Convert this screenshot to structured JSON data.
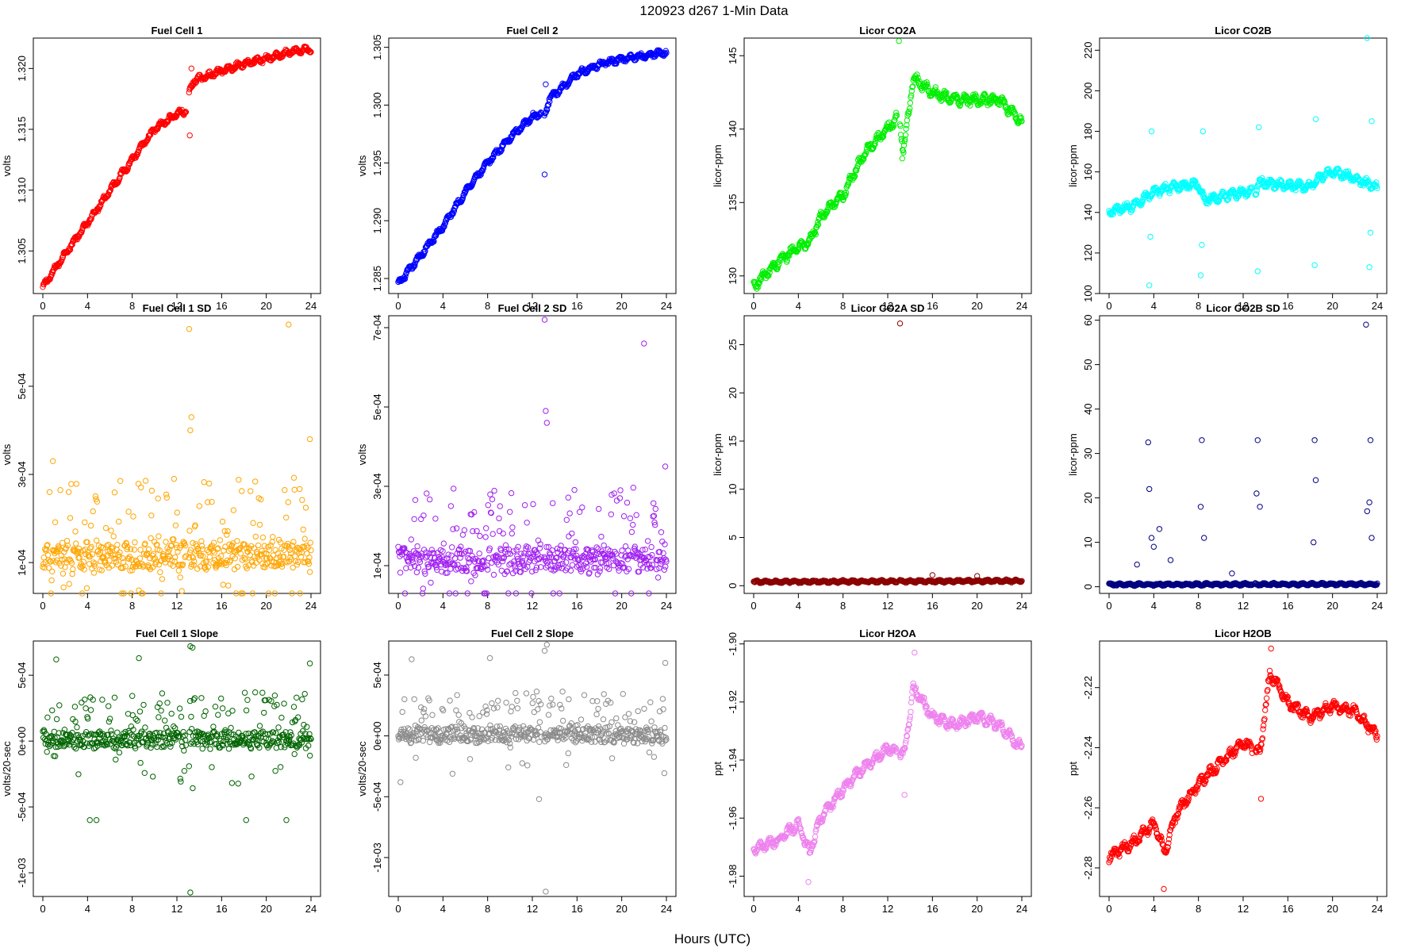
{
  "figure": {
    "title": "120923    d267    1-Min Data",
    "xlabel": "Hours (UTC)"
  },
  "chart_data": [
    {
      "type": "scatter",
      "title": "Fuel Cell 1",
      "ylabel": "volts",
      "color": "#ff0000",
      "xlim": [
        0,
        24
      ],
      "xticks": [
        0,
        4,
        8,
        12,
        16,
        20,
        24
      ],
      "ylim": [
        1.3015,
        1.3225
      ],
      "yticks": [
        1.305,
        1.31,
        1.315,
        1.32
      ],
      "ytick_labels": [
        "1.305",
        "1.310",
        "1.315",
        "1.320"
      ],
      "series_model": {
        "points": [
          [
            0,
            1.302
          ],
          [
            2,
            1.3048
          ],
          [
            4,
            1.3073
          ],
          [
            6,
            1.31
          ],
          [
            8,
            1.3125
          ],
          [
            10,
            1.315
          ],
          [
            12,
            1.3163
          ],
          [
            12.9,
            1.3165
          ],
          [
            13.1,
            1.318
          ],
          [
            13.5,
            1.319
          ],
          [
            16,
            1.3198
          ],
          [
            18,
            1.3204
          ],
          [
            20,
            1.3208
          ],
          [
            22,
            1.3213
          ],
          [
            24,
            1.3216
          ]
        ],
        "noise": 0.0003,
        "spread": 0,
        "outliers": [
          [
            13.15,
            1.3145
          ],
          [
            13.3,
            1.32
          ]
        ]
      }
    },
    {
      "type": "scatter",
      "title": "Fuel Cell 2",
      "ylabel": "volts",
      "color": "#0000ff",
      "xlim": [
        0,
        24
      ],
      "xticks": [
        0,
        4,
        8,
        12,
        16,
        20,
        24
      ],
      "ylim": [
        1.2837,
        1.3058
      ],
      "yticks": [
        1.285,
        1.29,
        1.295,
        1.3,
        1.305
      ],
      "ytick_labels": [
        "1.285",
        "1.290",
        "1.295",
        "1.300",
        "1.305"
      ],
      "series_model": {
        "points": [
          [
            0,
            1.2845
          ],
          [
            2,
            1.287
          ],
          [
            4,
            1.2895
          ],
          [
            6,
            1.2925
          ],
          [
            8,
            1.295
          ],
          [
            10,
            1.2972
          ],
          [
            12,
            1.299
          ],
          [
            12.9,
            1.2993
          ],
          [
            13.1,
            1.299
          ],
          [
            13.5,
            1.3005
          ],
          [
            16,
            1.3027
          ],
          [
            18,
            1.3035
          ],
          [
            20,
            1.304
          ],
          [
            22,
            1.3043
          ],
          [
            24,
            1.3046
          ]
        ],
        "noise": 0.0003,
        "spread": 0,
        "outliers": [
          [
            13.1,
            1.294
          ],
          [
            13.2,
            1.3018
          ]
        ]
      }
    },
    {
      "type": "scatter",
      "title": "Licor CO2A",
      "ylabel": "licor-ppm",
      "color": "#00ee00",
      "xlim": [
        0,
        24
      ],
      "xticks": [
        0,
        4,
        8,
        12,
        16,
        20,
        24
      ],
      "ylim": [
        128.8,
        146.2
      ],
      "yticks": [
        130,
        135,
        140,
        145
      ],
      "ytick_labels": [
        "130",
        "135",
        "140",
        "145"
      ],
      "series_model": {
        "points": [
          [
            0,
            129.3
          ],
          [
            2,
            130.8
          ],
          [
            4,
            132.0
          ],
          [
            5,
            132.3
          ],
          [
            6,
            134.0
          ],
          [
            8,
            135.5
          ],
          [
            10,
            138.5
          ],
          [
            12,
            140.0
          ],
          [
            13,
            141.0
          ],
          [
            13.4,
            138.5
          ],
          [
            14.3,
            143.5
          ],
          [
            16,
            142.5
          ],
          [
            18,
            142.0
          ],
          [
            20,
            142.0
          ],
          [
            22,
            142.0
          ],
          [
            24,
            140.5
          ]
        ],
        "noise": 0.4,
        "spread": 0,
        "outliers": [
          [
            13.0,
            146.0
          ],
          [
            13.3,
            138.0
          ]
        ]
      }
    },
    {
      "type": "scatter",
      "title": "Licor CO2B",
      "ylabel": "licor-ppm",
      "color": "#00ffff",
      "xlim": [
        0,
        24
      ],
      "xticks": [
        0,
        4,
        8,
        12,
        16,
        20,
        24
      ],
      "ylim": [
        100,
        226
      ],
      "yticks": [
        100,
        120,
        140,
        160,
        180,
        200,
        220
      ],
      "ytick_labels": [
        "100",
        "120",
        "140",
        "160",
        "180",
        "200",
        "220"
      ],
      "series_model": {
        "points": [
          [
            0,
            140
          ],
          [
            2,
            143
          ],
          [
            4,
            150
          ],
          [
            6,
            153
          ],
          [
            8,
            154
          ],
          [
            8.5,
            146
          ],
          [
            10,
            148
          ],
          [
            12,
            150
          ],
          [
            13,
            150
          ],
          [
            13.5,
            155
          ],
          [
            16,
            153
          ],
          [
            18,
            153
          ],
          [
            19,
            158
          ],
          [
            20,
            160
          ],
          [
            22,
            157
          ],
          [
            24,
            152
          ]
        ],
        "noise": 2.5,
        "spread": 0,
        "outliers": [
          [
            3.6,
            104
          ],
          [
            3.7,
            128
          ],
          [
            3.8,
            180
          ],
          [
            8.2,
            109
          ],
          [
            8.3,
            124
          ],
          [
            8.4,
            180
          ],
          [
            13.3,
            111
          ],
          [
            13.4,
            182
          ],
          [
            18.4,
            114
          ],
          [
            18.5,
            186
          ],
          [
            23.3,
            113
          ],
          [
            23.4,
            130
          ],
          [
            23.5,
            185
          ],
          [
            23.1,
            226
          ]
        ]
      }
    },
    {
      "type": "scatter",
      "title": "Fuel Cell 1 SD",
      "ylabel": "volts",
      "color": "#ffa500",
      "xlim": [
        0,
        24
      ],
      "xticks": [
        0,
        4,
        8,
        12,
        16,
        20,
        24
      ],
      "ylim": [
        3e-05,
        0.00066
      ],
      "yticks": [
        0.0001,
        0.0003,
        0.0005
      ],
      "ytick_labels": [
        "1e-04",
        "3e-04",
        "5e-04"
      ],
      "series_model": {
        "points": [
          [
            0,
            0.00011
          ],
          [
            24,
            0.00012
          ]
        ],
        "noise": 1e-05,
        "spread": 3e-05,
        "outliers": [
          [
            13.1,
            0.00063
          ],
          [
            22.0,
            0.00064
          ],
          [
            13.3,
            0.00043
          ],
          [
            13.2,
            0.0004
          ],
          [
            23.9,
            0.00038
          ],
          [
            0.9,
            0.00033
          ]
        ]
      }
    },
    {
      "type": "scatter",
      "title": "Fuel Cell 2 SD",
      "ylabel": "volts",
      "color": "#a020f0",
      "xlim": [
        0,
        24
      ],
      "xticks": [
        0,
        4,
        8,
        12,
        16,
        20,
        24
      ],
      "ylim": [
        3e-05,
        0.00073
      ],
      "yticks": [
        0.0001,
        0.0003,
        0.0005,
        0.0007
      ],
      "ytick_labels": [
        "1e-04",
        "3e-04",
        "5e-04",
        "7e-04"
      ],
      "series_model": {
        "points": [
          [
            0,
            0.00011
          ],
          [
            24,
            0.00012
          ]
        ],
        "noise": 1e-05,
        "spread": 3e-05,
        "outliers": [
          [
            13.1,
            0.00072
          ],
          [
            22.0,
            0.00066
          ],
          [
            13.3,
            0.00046
          ],
          [
            13.2,
            0.00049
          ],
          [
            23.9,
            0.00035
          ]
        ]
      }
    },
    {
      "type": "scatter",
      "title": "Licor CO2A SD",
      "ylabel": "licor-ppm",
      "color": "#8b0000",
      "xlim": [
        0,
        24
      ],
      "xticks": [
        0,
        4,
        8,
        12,
        16,
        20,
        24
      ],
      "ylim": [
        -0.8,
        28
      ],
      "yticks": [
        0,
        5,
        10,
        15,
        20,
        25
      ],
      "ytick_labels": [
        "0",
        "5",
        "10",
        "15",
        "20",
        "25"
      ],
      "series_model": {
        "points": [
          [
            0,
            0.4
          ],
          [
            24,
            0.5
          ]
        ],
        "noise": 0.15,
        "spread": 0,
        "outliers": [
          [
            13.1,
            27.2
          ],
          [
            16.0,
            1.1
          ],
          [
            20.0,
            1.0
          ]
        ]
      }
    },
    {
      "type": "scatter",
      "title": "Licor CO2B SD",
      "ylabel": "licor-ppm",
      "color": "#000080",
      "xlim": [
        0,
        24
      ],
      "xticks": [
        0,
        4,
        8,
        12,
        16,
        20,
        24
      ],
      "ylim": [
        -1.5,
        61
      ],
      "yticks": [
        0,
        10,
        20,
        30,
        40,
        50,
        60
      ],
      "ytick_labels": [
        "0",
        "10",
        "20",
        "30",
        "40",
        "50",
        "60"
      ],
      "series_model": {
        "points": [
          [
            0,
            0.5
          ],
          [
            24,
            0.6
          ]
        ],
        "noise": 0.3,
        "spread": 0,
        "outliers": [
          [
            3.5,
            32.5
          ],
          [
            3.6,
            22
          ],
          [
            3.8,
            11
          ],
          [
            4.0,
            9
          ],
          [
            8.3,
            33
          ],
          [
            8.2,
            18
          ],
          [
            8.5,
            11
          ],
          [
            13.3,
            33
          ],
          [
            13.2,
            21
          ],
          [
            13.5,
            18
          ],
          [
            18.4,
            33
          ],
          [
            18.5,
            24
          ],
          [
            18.3,
            10
          ],
          [
            23.0,
            59
          ],
          [
            23.4,
            33
          ],
          [
            23.3,
            19
          ],
          [
            23.1,
            17
          ],
          [
            23.5,
            11
          ],
          [
            2.5,
            5
          ],
          [
            4.5,
            13
          ],
          [
            5.5,
            6
          ],
          [
            11.0,
            3
          ]
        ]
      }
    },
    {
      "type": "scatter",
      "title": "Fuel Cell 1 Slope",
      "ylabel": "volts/20-sec",
      "color": "#006400",
      "xlim": [
        0,
        24
      ],
      "xticks": [
        0,
        4,
        8,
        12,
        16,
        20,
        24
      ],
      "ylim": [
        -0.00118,
        0.00076
      ],
      "yticks": [
        -0.001,
        -0.0005,
        0,
        0.0005
      ],
      "ytick_labels": [
        "-1e-03",
        "-5e-04",
        "0e+00",
        "5e-04"
      ],
      "series_model": {
        "points": [
          [
            0,
            1e-05
          ],
          [
            24,
            1e-05
          ]
        ],
        "noise": 2e-05,
        "spread": 6e-05,
        "outliers": [
          [
            13.2,
            -0.00115
          ],
          [
            13.2,
            0.00072
          ],
          [
            13.4,
            0.00071
          ],
          [
            1.2,
            0.00062
          ],
          [
            8.6,
            0.00063
          ],
          [
            23.9,
            0.00059
          ],
          [
            4.2,
            -0.0006
          ],
          [
            4.8,
            -0.0006
          ],
          [
            18.2,
            -0.0006
          ],
          [
            21.8,
            -0.0006
          ]
        ]
      }
    },
    {
      "type": "scatter",
      "title": "Fuel Cell 2 Slope",
      "ylabel": "volts/20-sec",
      "color": "#8c8c8c",
      "xlim": [
        0,
        24
      ],
      "xticks": [
        0,
        4,
        8,
        12,
        16,
        20,
        24
      ],
      "ylim": [
        -0.00132,
        0.00078
      ],
      "yticks": [
        -0.001,
        -0.0005,
        0,
        0.0005
      ],
      "ytick_labels": [
        "-1e-03",
        "-5e-04",
        "0e+00",
        "5e-04"
      ],
      "series_model": {
        "points": [
          [
            0,
            1e-05
          ],
          [
            24,
            1e-05
          ]
        ],
        "noise": 2e-05,
        "spread": 6e-05,
        "outliers": [
          [
            13.2,
            -0.00128
          ],
          [
            13.3,
            0.00075
          ],
          [
            13.1,
            0.0007
          ],
          [
            1.2,
            0.00063
          ],
          [
            8.2,
            0.00064
          ],
          [
            23.9,
            0.0006
          ],
          [
            0.2,
            -0.00038
          ],
          [
            12.6,
            -0.00052
          ]
        ]
      }
    },
    {
      "type": "scatter",
      "title": "Licor H2OA",
      "ylabel": "ppt",
      "color": "#ee82ee",
      "xlim": [
        0,
        24
      ],
      "xticks": [
        0,
        4,
        8,
        12,
        16,
        20,
        24
      ],
      "ylim": [
        -1.987,
        -1.899
      ],
      "yticks": [
        -1.98,
        -1.96,
        -1.94,
        -1.92,
        -1.9
      ],
      "ytick_labels": [
        "-1.98",
        "-1.96",
        "-1.94",
        "-1.92",
        "-1.90"
      ],
      "series_model": {
        "points": [
          [
            0,
            -1.971
          ],
          [
            2,
            -1.968
          ],
          [
            4,
            -1.962
          ],
          [
            5,
            -1.972
          ],
          [
            6,
            -1.96
          ],
          [
            8,
            -1.95
          ],
          [
            10,
            -1.942
          ],
          [
            12,
            -1.936
          ],
          [
            13.5,
            -1.938
          ],
          [
            14.3,
            -1.915
          ],
          [
            16,
            -1.925
          ],
          [
            18,
            -1.928
          ],
          [
            20,
            -1.925
          ],
          [
            22,
            -1.928
          ],
          [
            24,
            -1.936
          ]
        ],
        "noise": 0.002,
        "spread": 0,
        "outliers": [
          [
            14.4,
            -1.903
          ],
          [
            13.5,
            -1.952
          ],
          [
            4.9,
            -1.982
          ]
        ]
      }
    },
    {
      "type": "scatter",
      "title": "Licor H2OB",
      "ylabel": "ppt",
      "color": "#ff0000",
      "xlim": [
        0,
        24
      ],
      "xticks": [
        0,
        4,
        8,
        12,
        16,
        20,
        24
      ],
      "ylim": [
        -2.2895,
        -2.2045
      ],
      "yticks": [
        -2.28,
        -2.26,
        -2.24,
        -2.22
      ],
      "ytick_labels": [
        "-2.28",
        "-2.26",
        "-2.24",
        "-2.22"
      ],
      "series_model": {
        "points": [
          [
            0,
            -2.276
          ],
          [
            2,
            -2.272
          ],
          [
            4,
            -2.265
          ],
          [
            5,
            -2.275
          ],
          [
            6,
            -2.262
          ],
          [
            8,
            -2.252
          ],
          [
            10,
            -2.245
          ],
          [
            12,
            -2.238
          ],
          [
            13.5,
            -2.242
          ],
          [
            14.4,
            -2.215
          ],
          [
            16,
            -2.225
          ],
          [
            18,
            -2.23
          ],
          [
            20,
            -2.226
          ],
          [
            22,
            -2.228
          ],
          [
            24,
            -2.236
          ]
        ],
        "noise": 0.002,
        "spread": 0,
        "outliers": [
          [
            14.5,
            -2.207
          ],
          [
            4.9,
            -2.287
          ],
          [
            13.6,
            -2.257
          ]
        ]
      }
    }
  ]
}
